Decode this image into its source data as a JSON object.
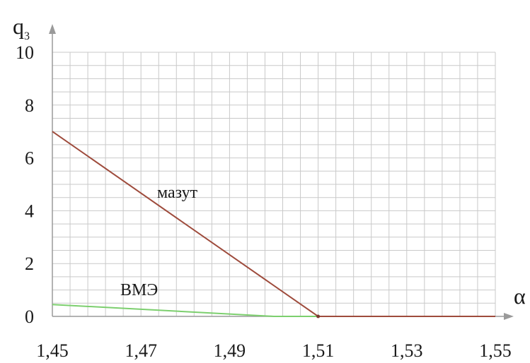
{
  "chart_data": {
    "type": "line",
    "title": "",
    "xlabel": "α",
    "ylabel": "q",
    "ylabel_subscript": "3",
    "xlim": [
      1.45,
      1.55
    ],
    "ylim": [
      0,
      10
    ],
    "x_ticks": [
      1.45,
      1.47,
      1.49,
      1.51,
      1.53,
      1.55
    ],
    "x_tick_labels": [
      "1,45",
      "1,47",
      "1,49",
      "1,51",
      "1,53",
      "1,55"
    ],
    "y_ticks": [
      0,
      2,
      4,
      6,
      8,
      10
    ],
    "y_tick_labels": [
      "0",
      "2",
      "4",
      "6",
      "8",
      "10"
    ],
    "grid": true,
    "series": [
      {
        "name": "мазут",
        "color": "#9e4b3c",
        "x": [
          1.45,
          1.51,
          1.55
        ],
        "y": [
          7.0,
          0.0,
          0.0
        ]
      },
      {
        "name": "ВМЭ",
        "color": "#7ccf6e",
        "x": [
          1.45,
          1.5,
          1.51
        ],
        "y": [
          0.45,
          0.0,
          0.0
        ]
      }
    ]
  }
}
